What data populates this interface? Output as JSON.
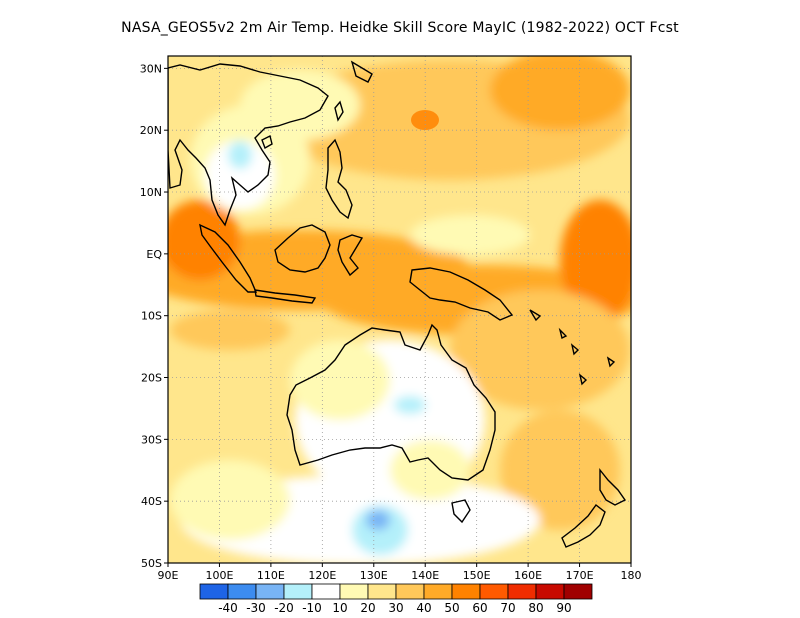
{
  "title": "NASA_GEOS5v2  2m Air Temp. Heidke Skill Score MayIC (1982-2022) OCT Fcst",
  "map": {
    "lon_range": [
      90,
      180
    ],
    "lat_range": [
      -50,
      32
    ],
    "x_ticks": [
      "90E",
      "100E",
      "110E",
      "120E",
      "130E",
      "140E",
      "150E",
      "160E",
      "170E",
      "180"
    ],
    "x_tick_values": [
      90,
      100,
      110,
      120,
      130,
      140,
      150,
      160,
      170,
      180
    ],
    "y_ticks": [
      "30N",
      "20N",
      "10N",
      "EQ",
      "10S",
      "20S",
      "30S",
      "40S",
      "50S"
    ],
    "y_tick_values": [
      30,
      20,
      10,
      0,
      -10,
      -20,
      -30,
      -40,
      -50
    ]
  },
  "colorbar": {
    "colors": [
      "#1e64e6",
      "#3c8cf0",
      "#78b4f5",
      "#b4f0fa",
      "#ffffff",
      "#fffab4",
      "#ffe68c",
      "#ffc85a",
      "#ffaa28",
      "#ff8200",
      "#ff5a00",
      "#f02d00",
      "#c80a00",
      "#a00000"
    ],
    "labels": [
      "-40",
      "-30",
      "-20",
      "-10",
      "10",
      "20",
      "30",
      "40",
      "50",
      "60",
      "70",
      "80",
      "90"
    ],
    "levels": [
      -40,
      -30,
      -20,
      -10,
      10,
      20,
      30,
      40,
      50,
      60,
      70,
      80,
      90
    ]
  }
}
